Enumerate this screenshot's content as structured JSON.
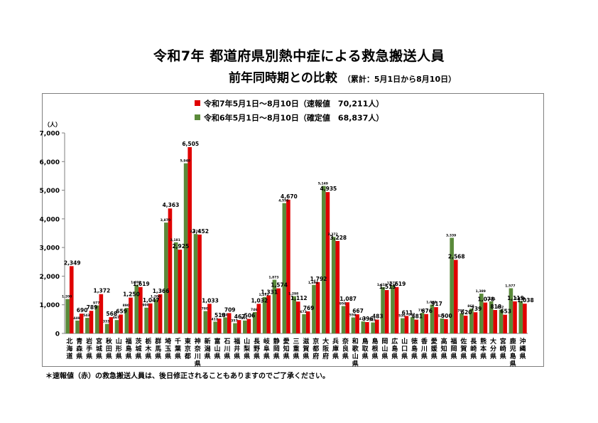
{
  "title": "令和7年  都道府県別熱中症による救急搬送人員",
  "subtitle": "前年同時期との比較",
  "subtitle_note": "（累計：5月1日から8月10日）",
  "footnote": "＊速報値（赤）の救急搬送人員は、後日修正されることもありますのでご了承ください。",
  "colors": {
    "current": "#e00000",
    "previous": "#5a8a3a",
    "axis": "#7f7f7f"
  },
  "chart_data": {
    "type": "bar",
    "ylabel": "（人）",
    "ylim": [
      0,
      7000
    ],
    "yticks": [
      "0",
      "1,000",
      "2,000",
      "3,000",
      "4,000",
      "5,000",
      "6,000",
      "7,000"
    ],
    "legend_position": "top-center",
    "categories": [
      "北海道",
      "青森県",
      "岩手県",
      "宮城県",
      "秋田県",
      "山形県",
      "福島県",
      "茨城県",
      "栃木県",
      "群馬県",
      "埼玉県",
      "千葉県",
      "東京都",
      "神奈川県",
      "新潟県",
      "富山県",
      "石川県",
      "福井県",
      "山梨県",
      "長野県",
      "岐阜県",
      "静岡県",
      "愛知県",
      "三重県",
      "滋賀県",
      "京都府",
      "大阪府",
      "兵庫県",
      "奈良県",
      "和歌山県",
      "鳥取県",
      "島根県",
      "岡山県",
      "広島県",
      "山口県",
      "徳島県",
      "香川県",
      "愛媛県",
      "高知県",
      "福岡県",
      "佐賀県",
      "長崎県",
      "熊本県",
      "大分県",
      "宮崎県",
      "鹿児島県",
      "沖縄県"
    ],
    "series": [
      {
        "name": "令和7年5月1日〜8月10日（速報値　70,211人）",
        "color": "#e00000",
        "values": [
          2349,
          690,
          789,
          1372,
          568,
          659,
          1250,
          1619,
          1047,
          1366,
          4363,
          2925,
          6505,
          3452,
          1033,
          518,
          709,
          467,
          506,
          1032,
          1331,
          1574,
          4670,
          1112,
          769,
          1792,
          4935,
          3228,
          1087,
          667,
          396,
          483,
          1513,
          1619,
          611,
          481,
          676,
          917,
          500,
          2568,
          620,
          739,
          1078,
          818,
          653,
          1119,
          1038
        ],
        "labels": [
          "2,349",
          "690",
          "789",
          "1,372",
          "568",
          "659",
          "1,250",
          "1,619",
          "1,047",
          "1,366",
          "4,363",
          "2,925",
          "6,505",
          "3,452",
          "1,033",
          "518",
          "709",
          "467",
          "506",
          "1,032",
          "1,331",
          "1,574",
          "4,670",
          "1,112",
          "769",
          "1,792",
          "4,935",
          "3,228",
          "1,087",
          "667",
          "396",
          "483",
          "1,513",
          "1,619",
          "611",
          "481",
          "676",
          "917",
          "500",
          "2,568",
          "620",
          "739",
          "1,078",
          "818",
          "653",
          "1,119",
          "1,038"
        ]
      },
      {
        "name": "令和6年5月1日〜8月10日（確定値　68,837人）",
        "color": "#5a8a3a",
        "values": [
          1200,
          449,
          543,
          977,
          333,
          467,
          890,
          1698,
          900,
          1200,
          3870,
          3181,
          5940,
          3471,
          780,
          412,
          560,
          357,
          451,
          746,
          1272,
          1873,
          4550,
          1298,
          672,
          1694,
          5149,
          3372,
          956,
          559,
          419,
          383,
          1619,
          1673,
          530,
          567,
          717,
          1006,
          522,
          3339,
          707,
          868,
          1389,
          1121,
          832,
          1577,
          1133
        ],
        "labels": [
          "1,200",
          "449",
          "543",
          "977",
          "333",
          "467",
          "890",
          "1,698",
          "900",
          "1,200",
          "3,870",
          "3,181",
          "5,940",
          "3,471",
          "780",
          "412",
          "560",
          "357",
          "451",
          "746",
          "1,272",
          "1,873",
          "4,550",
          "1,298",
          "672",
          "1,694",
          "5,149",
          "3,372",
          "956",
          "559",
          "419",
          "383",
          "1,619",
          "1,673",
          "530",
          "567",
          "717",
          "1,006",
          "522",
          "3,339",
          "707",
          "868",
          "1,389",
          "1,121",
          "832",
          "1,577",
          "1,133"
        ]
      }
    ]
  }
}
